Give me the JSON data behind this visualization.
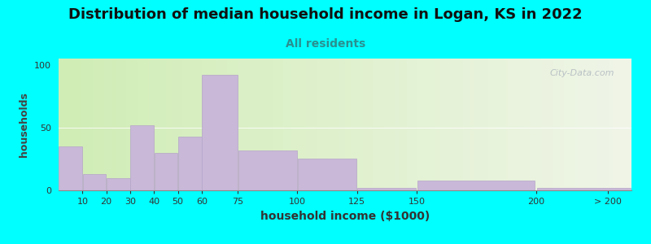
{
  "title": "Distribution of median household income in Logan, KS in 2022",
  "subtitle": "All residents",
  "xlabel": "household income ($1000)",
  "ylabel": "households",
  "bar_color": "#c9b8d8",
  "bar_edgecolor": "#b5a5c8",
  "background_outer": "#00FFFF",
  "title_fontsize": 13,
  "subtitle_fontsize": 10,
  "subtitle_color": "#2a9090",
  "xlabel_fontsize": 10,
  "ylabel_fontsize": 9,
  "tick_positions": [
    10,
    20,
    30,
    40,
    50,
    60,
    75,
    100,
    125,
    150,
    200,
    230
  ],
  "tick_labels": [
    "10",
    "20",
    "30",
    "40",
    "50",
    "60",
    "75",
    "100",
    "125",
    "150",
    "200",
    "> 200"
  ],
  "bin_lefts": [
    0,
    10,
    20,
    30,
    40,
    50,
    60,
    75,
    100,
    125,
    150,
    200
  ],
  "bin_rights": [
    10,
    20,
    30,
    40,
    50,
    60,
    75,
    100,
    125,
    150,
    200,
    240
  ],
  "values": [
    35,
    13,
    10,
    52,
    30,
    43,
    92,
    32,
    25,
    2,
    8,
    2
  ],
  "ylim": [
    0,
    105
  ],
  "yticks": [
    0,
    50,
    100
  ],
  "watermark": "City-Data.com",
  "bg_gradient_left": "#d0edb5",
  "bg_gradient_right": "#f0f5e8",
  "xlim_left": 0,
  "xlim_right": 240
}
